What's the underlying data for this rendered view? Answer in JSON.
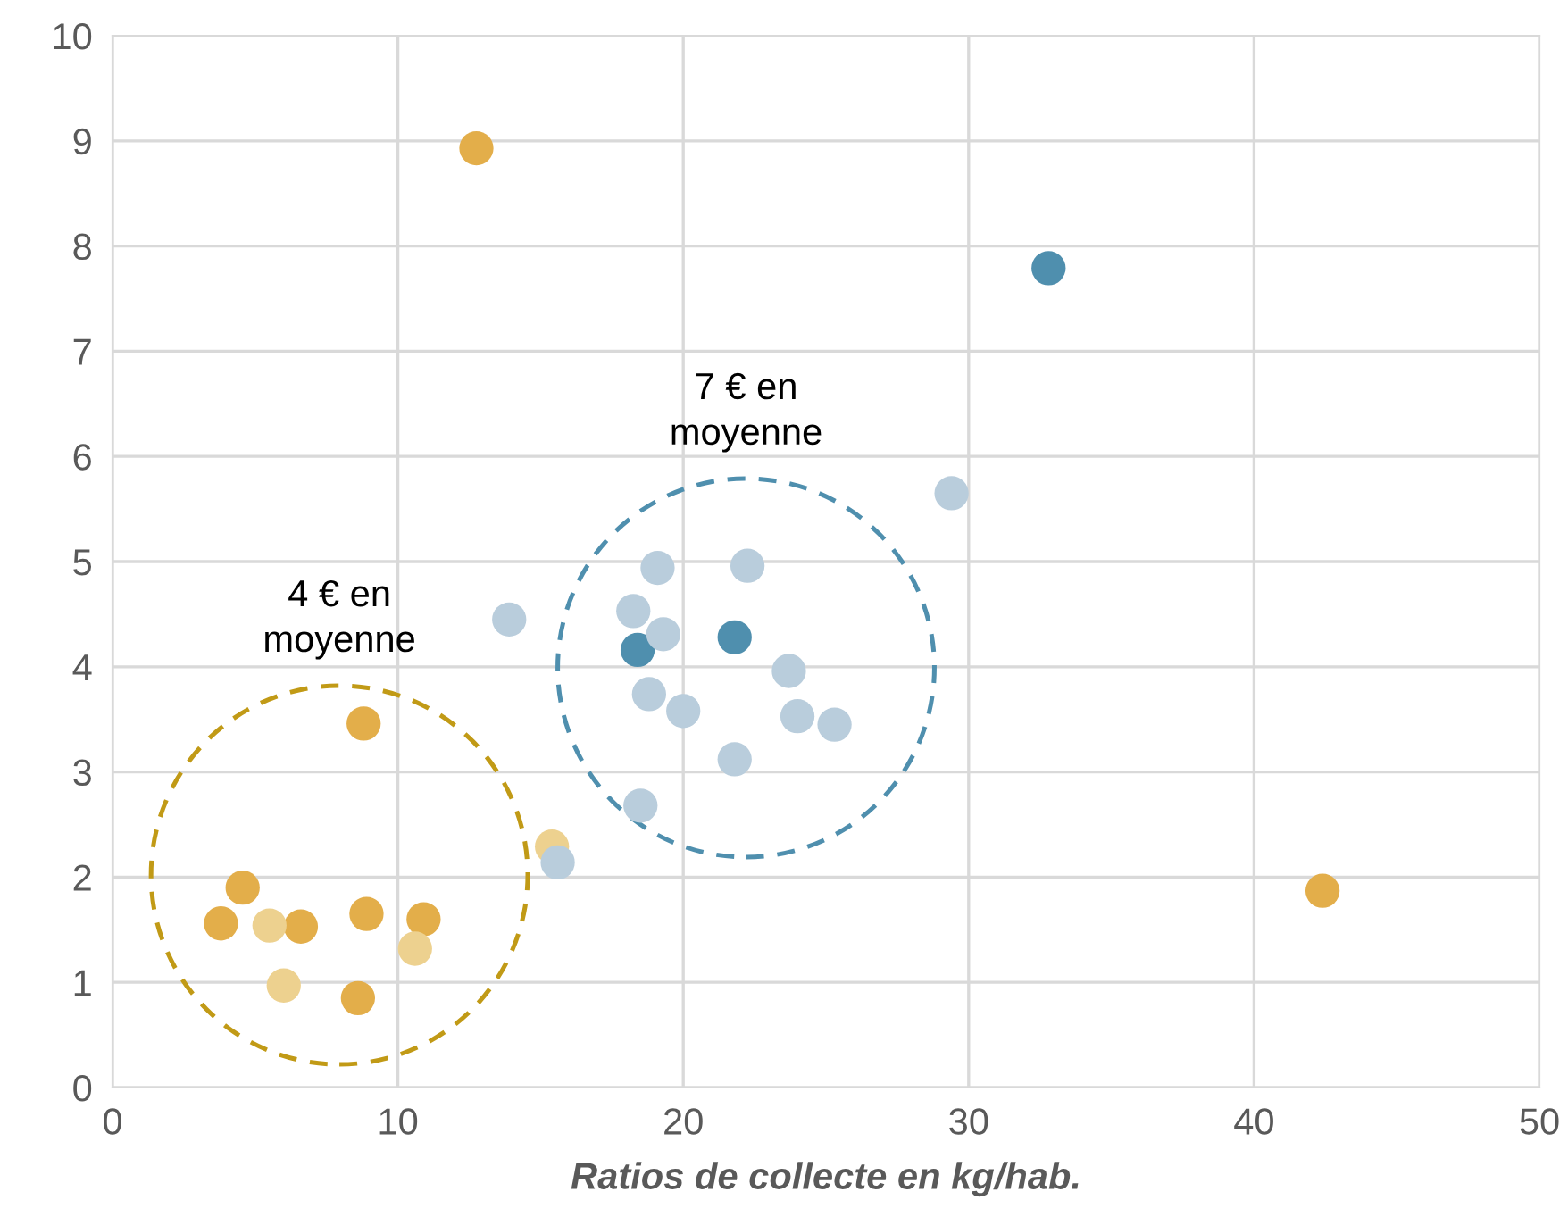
{
  "chart_data": {
    "type": "scatter",
    "xlabel": "Ratios de collecte en kg/hab.",
    "xlim": [
      0,
      50
    ],
    "xticks": [
      0,
      10,
      20,
      30,
      40,
      50
    ],
    "ylim": [
      0,
      10
    ],
    "yticks": [
      0,
      1,
      2,
      3,
      4,
      5,
      6,
      7,
      8,
      9,
      10
    ],
    "grid": true,
    "marker": "circle",
    "series": [
      {
        "color": "#e3ae4a",
        "x": [
          12.75,
          42.4,
          8.8,
          4.56,
          3.8,
          6.6,
          8.9,
          10.9,
          8.6
        ],
        "values": [
          8.93,
          1.87,
          3.46,
          1.9,
          1.56,
          1.53,
          1.65,
          1.6,
          0.85
        ]
      },
      {
        "color": "#edd18f",
        "x": [
          5.5,
          6.0,
          10.6,
          15.4
        ],
        "values": [
          1.54,
          0.97,
          1.32,
          2.29
        ]
      },
      {
        "color": "#4f8fae",
        "x": [
          32.8,
          18.4,
          21.8
        ],
        "values": [
          7.79,
          4.16,
          4.28
        ]
      },
      {
        "color": "#b9cddc",
        "x": [
          29.4,
          13.9,
          18.25,
          19.1,
          22.25,
          19.3,
          18.8,
          20.0,
          23.7,
          24.0,
          25.3,
          21.8,
          18.5,
          15.6
        ],
        "values": [
          5.65,
          4.45,
          4.53,
          4.94,
          4.96,
          4.31,
          3.74,
          3.58,
          3.96,
          3.53,
          3.45,
          3.12,
          2.68,
          2.14
        ]
      }
    ],
    "annotations": [
      "4 € en\nmoyenne",
      "7 € en\nmoyenne"
    ]
  }
}
